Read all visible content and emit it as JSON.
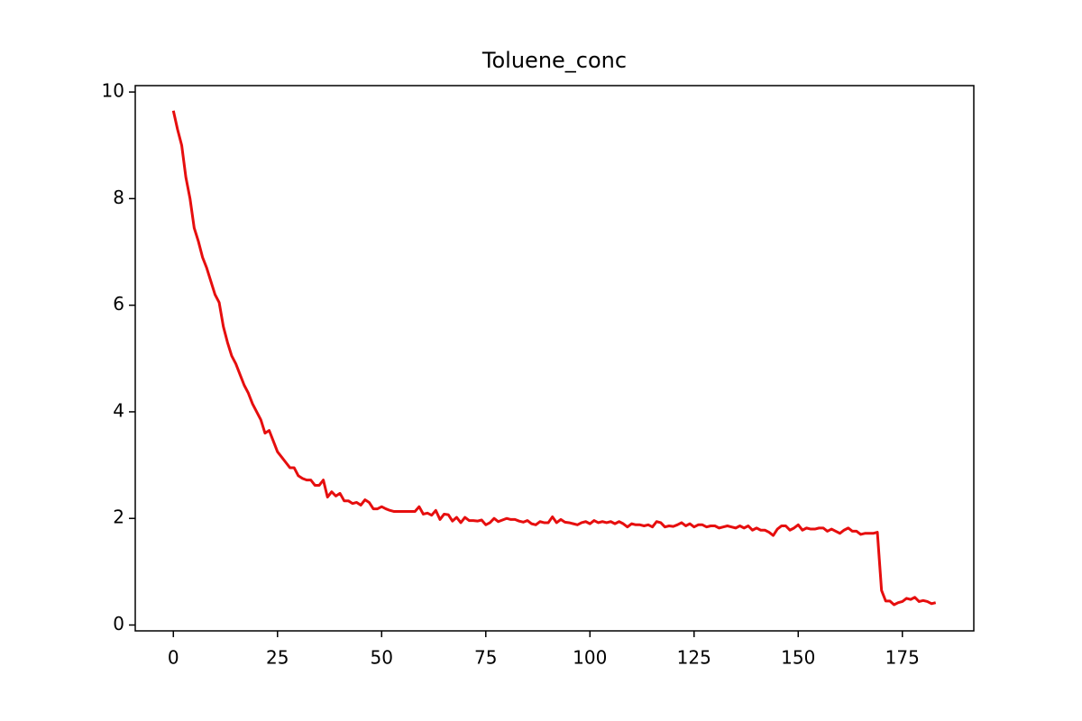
{
  "chart_data": {
    "type": "line",
    "title": "Toluene_conc",
    "x": [
      0,
      1,
      2,
      3,
      4,
      5,
      6,
      7,
      8,
      9,
      10,
      11,
      12,
      13,
      14,
      15,
      16,
      17,
      18,
      19,
      20,
      21,
      22,
      23,
      24,
      25,
      26,
      27,
      28,
      29,
      30,
      31,
      32,
      33,
      34,
      35,
      36,
      37,
      38,
      39,
      40,
      41,
      42,
      43,
      44,
      45,
      46,
      47,
      48,
      49,
      50,
      51,
      52,
      53,
      54,
      55,
      56,
      57,
      58,
      59,
      60,
      61,
      62,
      63,
      64,
      65,
      66,
      67,
      68,
      69,
      70,
      71,
      72,
      73,
      74,
      75,
      76,
      77,
      78,
      79,
      80,
      81,
      82,
      83,
      84,
      85,
      86,
      87,
      88,
      89,
      90,
      91,
      92,
      93,
      94,
      95,
      96,
      97,
      98,
      99,
      100,
      101,
      102,
      103,
      104,
      105,
      106,
      107,
      108,
      109,
      110,
      111,
      112,
      113,
      114,
      115,
      116,
      117,
      118,
      119,
      120,
      121,
      122,
      123,
      124,
      125,
      126,
      127,
      128,
      129,
      130,
      131,
      132,
      133,
      134,
      135,
      136,
      137,
      138,
      139,
      140,
      141,
      142,
      143,
      144,
      145,
      146,
      147,
      148,
      149,
      150,
      151,
      152,
      153,
      154,
      155,
      156,
      157,
      158,
      159,
      160,
      161,
      162,
      163,
      164,
      165,
      166,
      167,
      168,
      169,
      170,
      171,
      172,
      173,
      174,
      175,
      176,
      177,
      178,
      179,
      180,
      181,
      182,
      183
    ],
    "series": [
      {
        "name": "Toluene_conc",
        "color": "#e60e0e",
        "values": [
          9.65,
          9.3,
          9.0,
          8.4,
          8.0,
          7.45,
          7.2,
          6.9,
          6.7,
          6.45,
          6.2,
          6.05,
          5.6,
          5.3,
          5.05,
          4.9,
          4.7,
          4.5,
          4.35,
          4.15,
          4.0,
          3.85,
          3.6,
          3.65,
          3.45,
          3.25,
          3.15,
          3.05,
          2.95,
          2.95,
          2.8,
          2.75,
          2.72,
          2.72,
          2.62,
          2.62,
          2.72,
          2.4,
          2.5,
          2.42,
          2.47,
          2.33,
          2.33,
          2.28,
          2.3,
          2.25,
          2.35,
          2.3,
          2.18,
          2.18,
          2.22,
          2.18,
          2.15,
          2.13,
          2.13,
          2.13,
          2.13,
          2.13,
          2.13,
          2.22,
          2.08,
          2.1,
          2.06,
          2.15,
          1.98,
          2.08,
          2.07,
          1.95,
          2.02,
          1.92,
          2.02,
          1.96,
          1.96,
          1.95,
          1.97,
          1.88,
          1.92,
          2.0,
          1.94,
          1.97,
          2.0,
          1.98,
          1.98,
          1.95,
          1.93,
          1.96,
          1.9,
          1.88,
          1.94,
          1.92,
          1.92,
          2.03,
          1.92,
          1.98,
          1.93,
          1.92,
          1.9,
          1.88,
          1.92,
          1.94,
          1.9,
          1.96,
          1.92,
          1.94,
          1.92,
          1.94,
          1.9,
          1.94,
          1.9,
          1.84,
          1.9,
          1.88,
          1.88,
          1.86,
          1.88,
          1.84,
          1.94,
          1.92,
          1.84,
          1.86,
          1.85,
          1.88,
          1.92,
          1.86,
          1.9,
          1.84,
          1.88,
          1.88,
          1.84,
          1.86,
          1.86,
          1.82,
          1.84,
          1.86,
          1.84,
          1.82,
          1.86,
          1.82,
          1.86,
          1.78,
          1.82,
          1.78,
          1.78,
          1.74,
          1.68,
          1.8,
          1.86,
          1.86,
          1.78,
          1.82,
          1.88,
          1.78,
          1.82,
          1.8,
          1.8,
          1.82,
          1.82,
          1.76,
          1.8,
          1.76,
          1.72,
          1.78,
          1.82,
          1.76,
          1.76,
          1.7,
          1.72,
          1.72,
          1.72,
          1.74,
          0.65,
          0.45,
          0.45,
          0.38,
          0.42,
          0.44,
          0.5,
          0.48,
          0.52,
          0.44,
          0.46,
          0.44,
          0.4,
          0.42
        ]
      }
    ],
    "xlim": [
      -9.15,
      192.15
    ],
    "xticks": [
      0,
      25,
      50,
      75,
      100,
      125,
      150,
      175
    ],
    "ylim": [
      -0.11,
      10.12
    ],
    "yticks": [
      0,
      2,
      4,
      6,
      8,
      10
    ]
  }
}
